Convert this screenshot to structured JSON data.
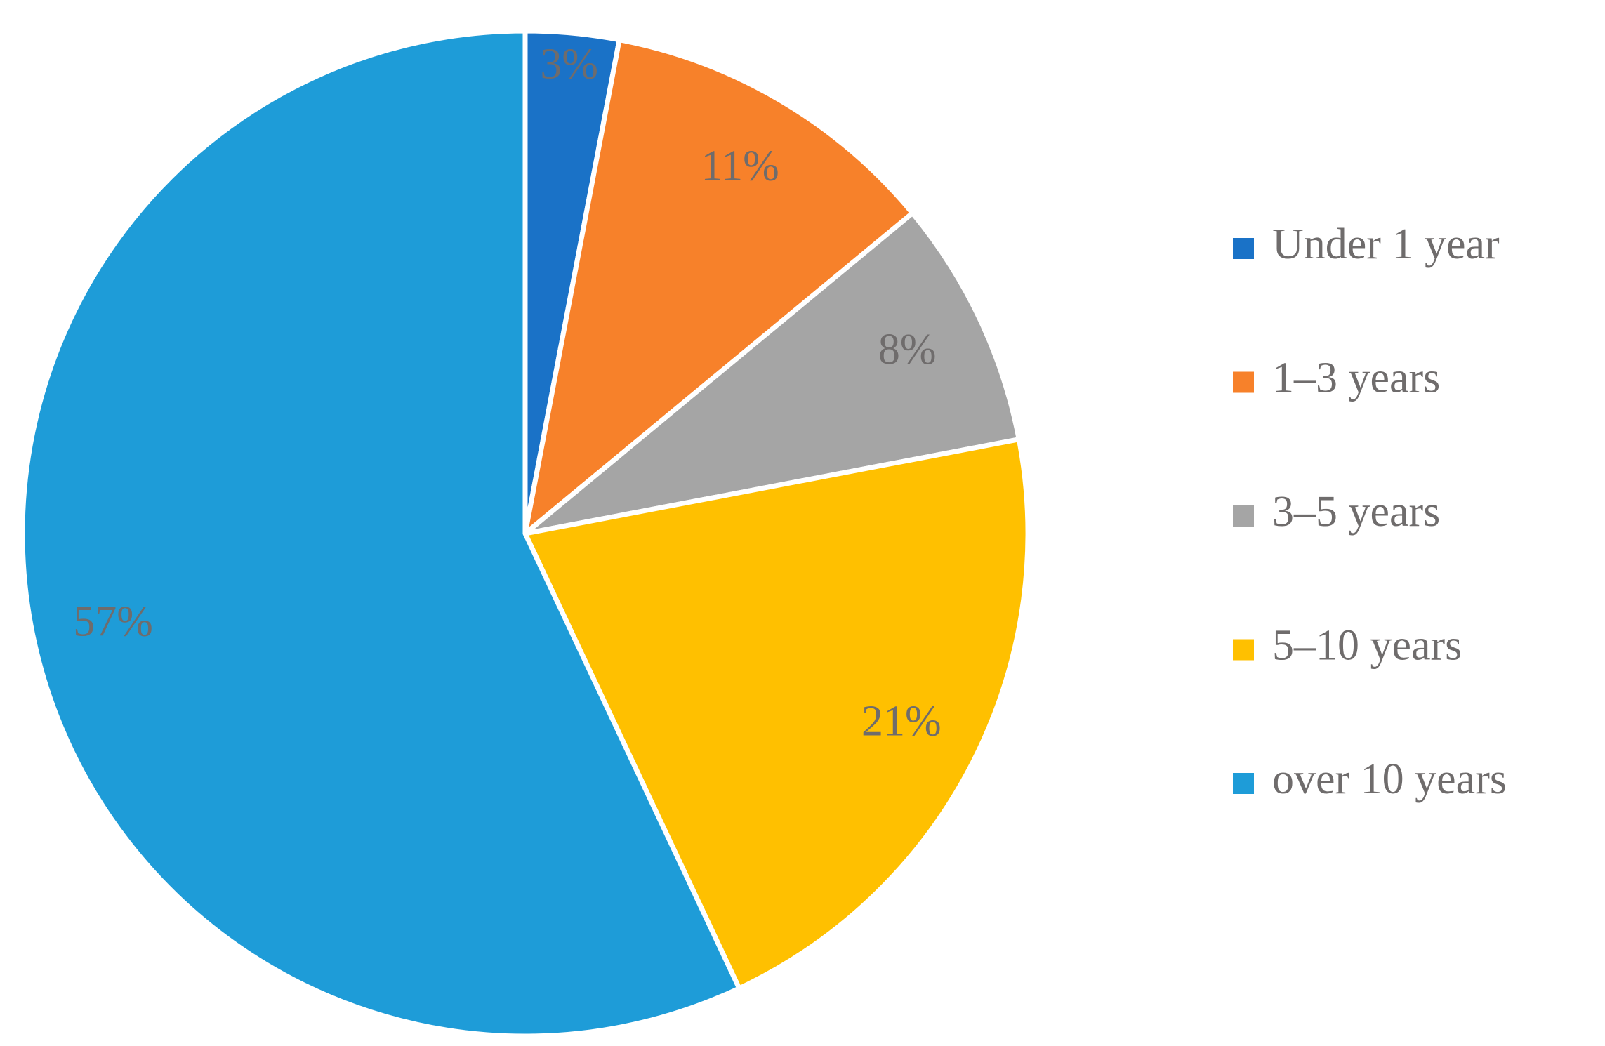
{
  "chart_data": {
    "type": "pie",
    "categories": [
      "Under 1 year",
      "1–3 years",
      "3–5 years",
      "5–10 years",
      "over 10 years"
    ],
    "values": [
      3,
      11,
      8,
      21,
      57
    ],
    "value_labels": [
      "3%",
      "11%",
      "8%",
      "21%",
      "57%"
    ],
    "colors": [
      "#1a72c7",
      "#f7812a",
      "#a5a5a5",
      "#ffc000",
      "#1e9cd8"
    ],
    "legend": "right"
  }
}
